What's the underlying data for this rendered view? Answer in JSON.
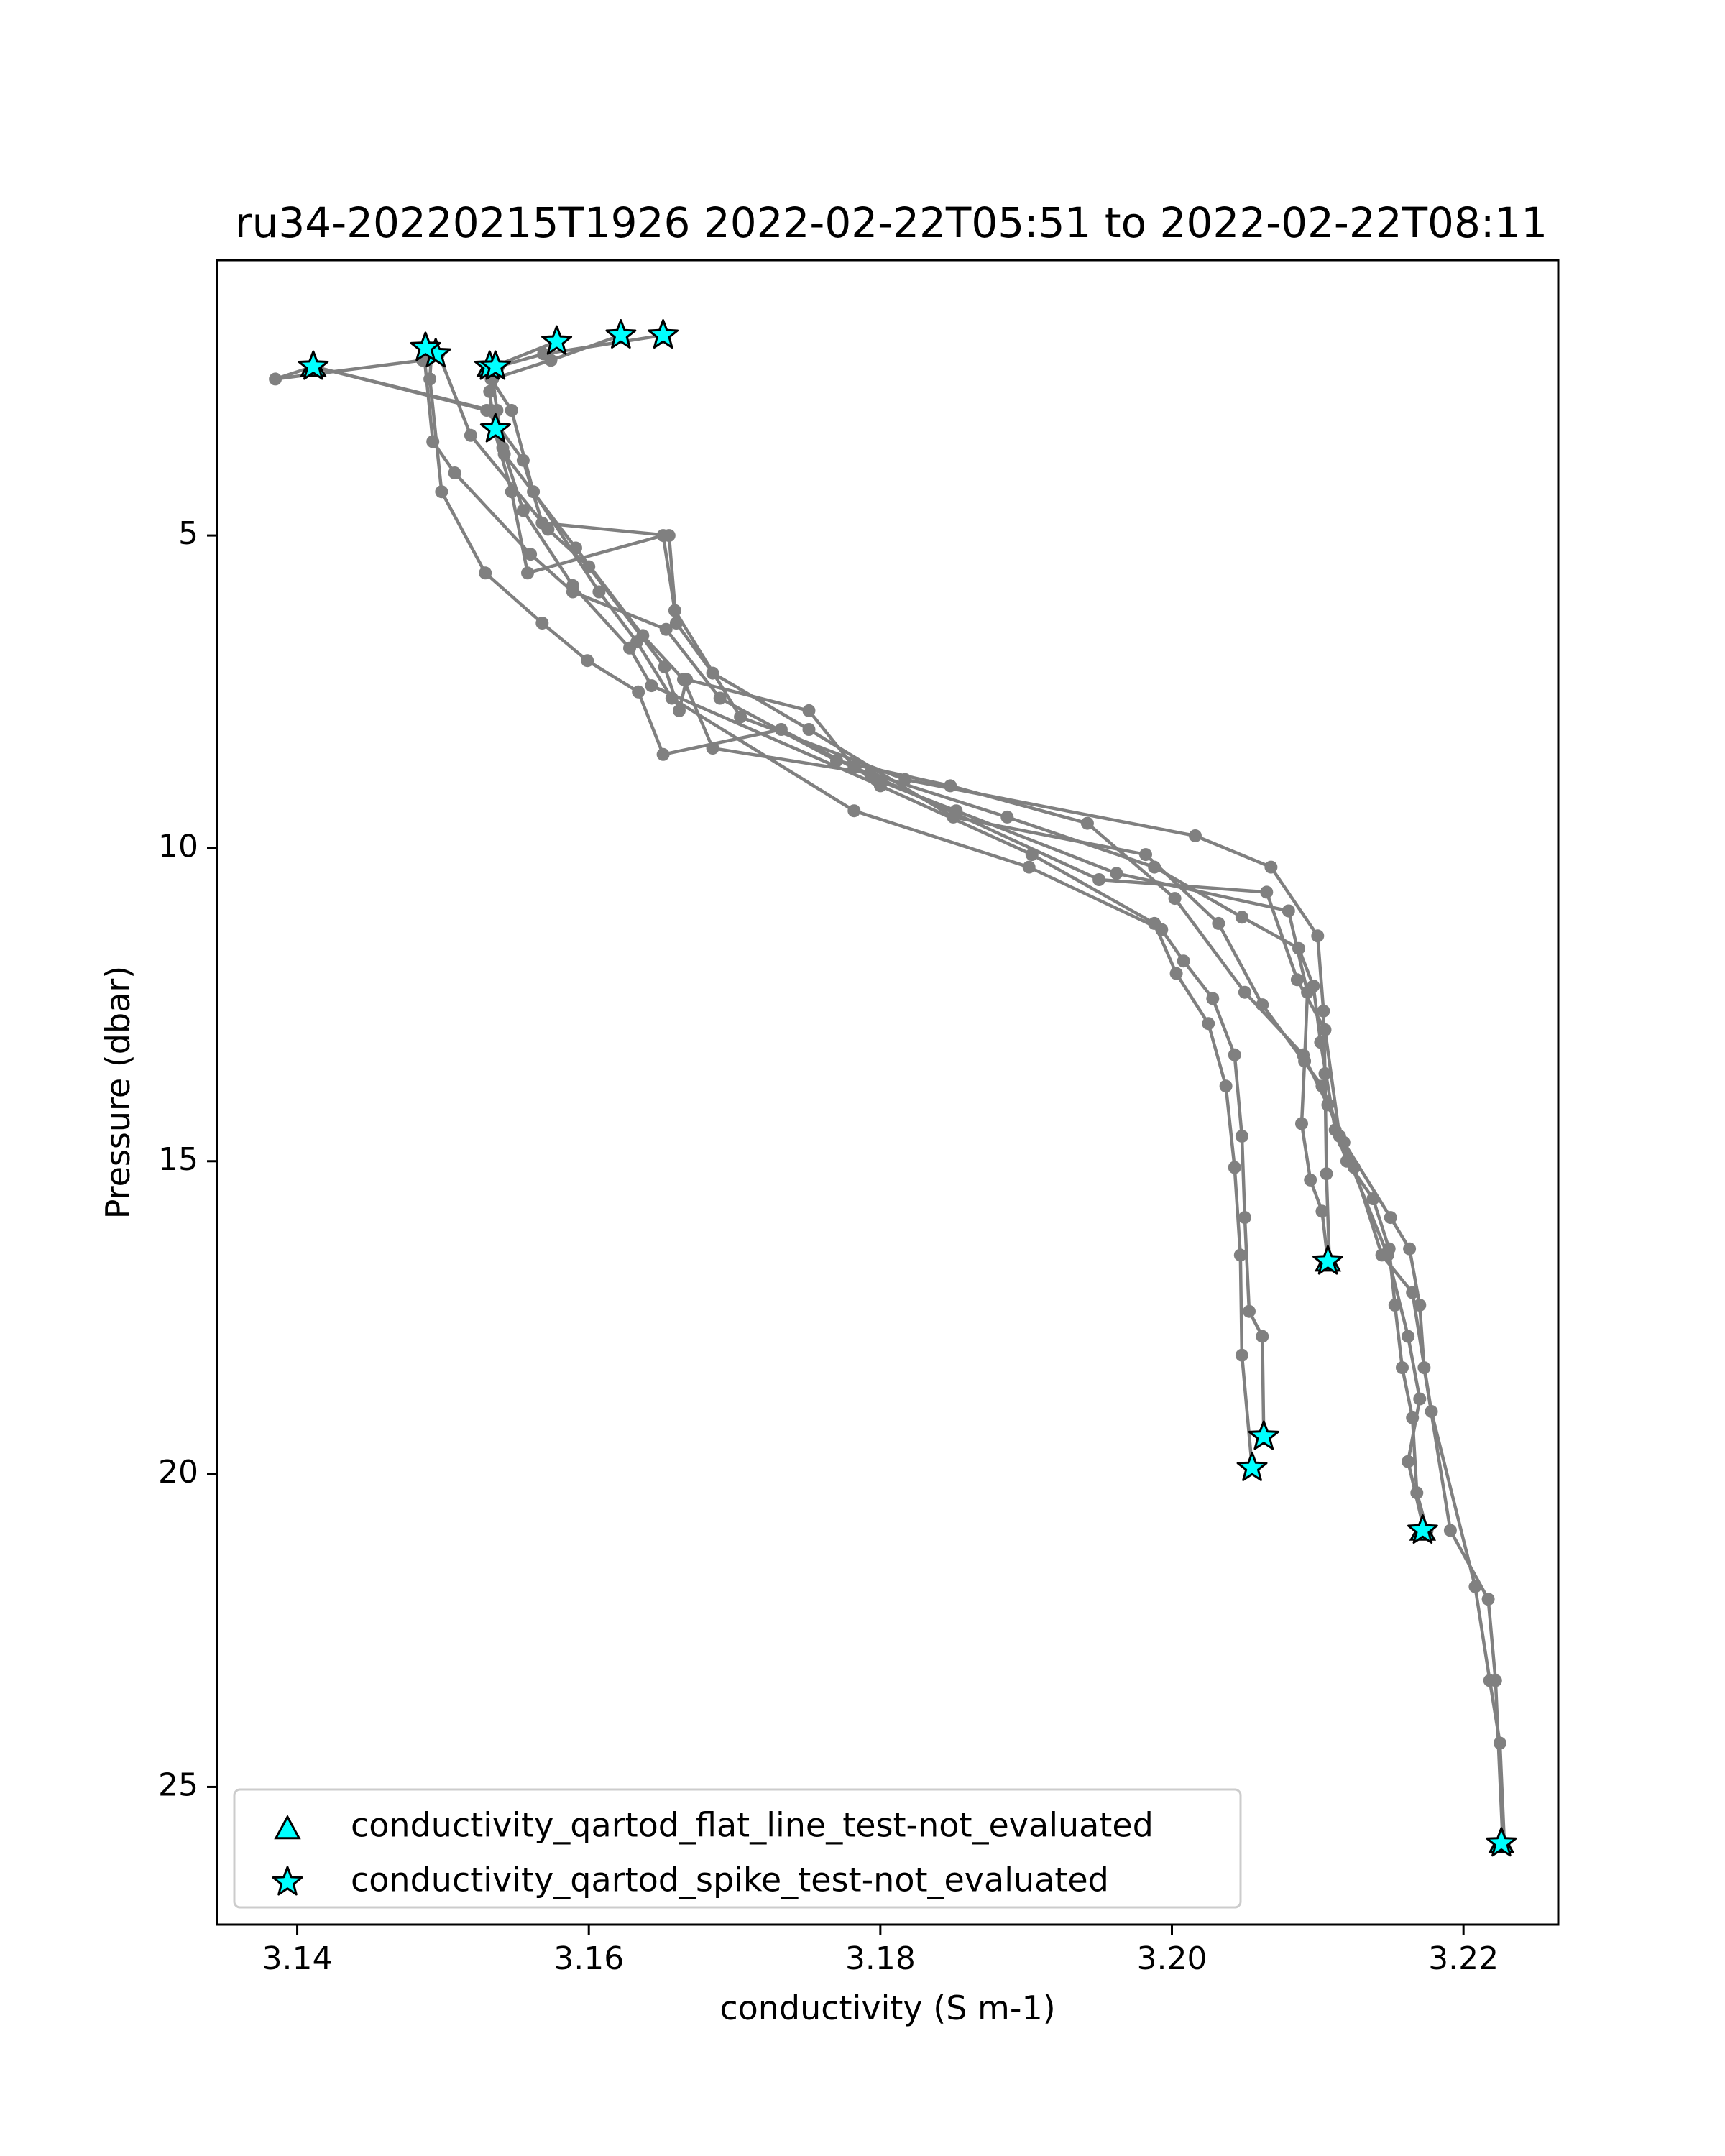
{
  "chart_data": {
    "type": "line",
    "title": "ru34-20220215T1926 2022-02-22T05:51 to 2022-02-22T08:11",
    "xlabel": "conductivity (S m-1)",
    "ylabel": "Pressure (dbar)",
    "xlim": [
      3.1345,
      3.2265
    ],
    "ylim": [
      27.2,
      0.6
    ],
    "y_inverted": true,
    "xticks": [
      3.14,
      3.16,
      3.18,
      3.2,
      3.22
    ],
    "xtick_labels": [
      "3.14",
      "3.16",
      "3.18",
      "3.20",
      "3.22"
    ],
    "yticks": [
      5,
      10,
      15,
      20,
      25
    ],
    "ytick_labels": [
      "5",
      "10",
      "15",
      "20",
      "25"
    ],
    "grid": false,
    "legend_position": "lower-left",
    "colors": {
      "line": "#808080",
      "flag_fill": "#00ffff",
      "flag_edge": "#000000"
    },
    "series": [
      {
        "x": [
          3.1651,
          3.1569,
          3.1538,
          3.1533,
          3.1547,
          3.1562,
          3.1607,
          3.1633,
          3.1657,
          3.1782,
          3.1902,
          3.1993,
          3.2008,
          3.2028,
          3.2043,
          3.2048,
          3.205,
          3.2053,
          3.2062,
          3.2063
        ],
        "y": [
          1.8,
          2.1,
          2.3,
          2.5,
          3.0,
          4.3,
          5.9,
          6.7,
          7.6,
          9.4,
          10.3,
          11.3,
          11.8,
          12.4,
          13.3,
          14.6,
          15.9,
          17.4,
          17.8,
          19.4
        ]
      },
      {
        "x": [
          3.1622,
          3.1574,
          3.1534,
          3.1537,
          3.1541,
          3.1555,
          3.1589,
          3.1628,
          3.1643,
          3.18,
          3.1904,
          3.1988,
          3.2003,
          3.2025,
          3.2037,
          3.2043,
          3.2047,
          3.2048,
          3.2055
        ],
        "y": [
          1.8,
          2.2,
          2.5,
          3.0,
          3.6,
          4.6,
          5.8,
          6.8,
          7.4,
          9.0,
          10.1,
          11.2,
          12.0,
          12.8,
          13.8,
          15.1,
          16.5,
          18.1,
          19.9
        ]
      },
      {
        "x": [
          3.1578,
          3.1535,
          3.1532,
          3.1535,
          3.1547,
          3.1558,
          3.1651,
          3.1659,
          3.1704,
          3.1817,
          3.2016,
          3.2068,
          3.21,
          3.2104,
          3.2105,
          3.2106,
          3.2108
        ],
        "y": [
          1.9,
          2.3,
          2.7,
          3.3,
          4.3,
          5.6,
          5.0,
          6.2,
          7.9,
          8.9,
          9.8,
          10.3,
          11.4,
          12.6,
          13.6,
          15.2,
          16.6
        ]
      },
      {
        "x": [
          3.1492,
          3.1491,
          3.1499,
          3.1529,
          3.1568,
          3.1599,
          3.1634,
          3.1651,
          3.1732,
          3.1797,
          3.1852,
          3.1962,
          3.208,
          3.2093,
          3.2091,
          3.2089,
          3.2095,
          3.2103,
          3.2107
        ],
        "y": [
          2.1,
          2.5,
          4.3,
          5.6,
          6.4,
          7.0,
          7.5,
          8.5,
          8.1,
          8.9,
          9.4,
          10.4,
          11.0,
          12.3,
          13.4,
          14.4,
          15.3,
          15.8,
          16.6
        ]
      },
      {
        "x": [
          3.1411,
          3.1385,
          3.1486,
          3.1497,
          3.1519,
          3.1572,
          3.16,
          3.1652,
          3.1662,
          3.1667,
          3.1751,
          3.1782,
          3.195,
          3.2065,
          3.2086,
          3.2105,
          3.2115,
          3.2148,
          3.2162,
          3.217,
          3.2162,
          3.2173
        ],
        "y": [
          2.3,
          2.5,
          2.2,
          2.1,
          3.4,
          4.9,
          5.5,
          7.1,
          7.8,
          7.3,
          7.8,
          8.7,
          10.5,
          10.7,
          12.1,
          12.9,
          14.6,
          16.5,
          17.8,
          18.8,
          19.8,
          20.9
        ]
      },
      {
        "x": [
          3.1411,
          3.1533,
          3.1542,
          3.1591,
          3.1637,
          3.1665,
          3.1685,
          3.1793,
          3.1887,
          3.1988,
          3.2048,
          3.2087,
          3.2097,
          3.2102,
          3.2112,
          3.212,
          3.2138,
          3.2149,
          3.2153,
          3.2158,
          3.2165,
          3.2168,
          3.2175
        ],
        "y": [
          2.3,
          3.0,
          3.7,
          5.2,
          6.6,
          7.3,
          8.4,
          8.8,
          9.5,
          10.3,
          11.1,
          11.6,
          12.2,
          13.1,
          14.5,
          15.0,
          15.6,
          16.4,
          17.3,
          18.3,
          19.1,
          20.3,
          20.9
        ]
      },
      {
        "x": [
          3.1487,
          3.1493,
          3.1508,
          3.156,
          3.1589,
          3.1653,
          3.169,
          3.177,
          3.1848,
          3.1942,
          3.2002,
          3.205,
          3.209,
          3.2107,
          3.2125,
          3.2144,
          3.2165,
          3.2178,
          3.2208,
          3.2218,
          3.2225,
          3.2228
        ],
        "y": [
          2.1,
          3.5,
          4.0,
          5.3,
          5.9,
          6.5,
          7.6,
          8.6,
          9.0,
          9.6,
          10.8,
          12.3,
          13.3,
          14.1,
          15.1,
          16.5,
          17.1,
          19.0,
          21.8,
          23.3,
          24.3,
          25.9
        ]
      },
      {
        "x": [
          3.1411,
          3.153,
          3.1555,
          3.1568,
          3.1655,
          3.166,
          3.1685,
          3.1751,
          3.185,
          3.1982,
          3.2032,
          3.2062,
          3.2103,
          3.2118,
          3.215,
          3.2163,
          3.217,
          3.2173,
          3.2191,
          3.2217,
          3.2222,
          3.2227
        ],
        "y": [
          2.3,
          3.0,
          3.8,
          4.8,
          5.0,
          6.4,
          7.2,
          8.1,
          9.5,
          10.1,
          11.2,
          12.5,
          13.8,
          14.7,
          15.9,
          16.4,
          17.3,
          18.3,
          20.9,
          22.0,
          23.3,
          25.9
        ]
      }
    ],
    "flags": {
      "spike": {
        "x": [
          3.1651,
          3.1622,
          3.1578,
          3.1495,
          3.1488,
          3.1411,
          3.1532,
          3.1536,
          3.1536,
          3.2063,
          3.2055,
          3.2107,
          3.2172,
          3.2226
        ],
        "y": [
          1.8,
          1.8,
          1.9,
          2.1,
          2.0,
          2.3,
          2.3,
          2.3,
          3.3,
          19.4,
          19.9,
          16.6,
          20.9,
          25.9
        ]
      },
      "flat_line": {
        "x": [
          3.1411,
          3.1532,
          3.2107,
          3.2172,
          3.2226
        ],
        "y": [
          2.3,
          2.3,
          16.6,
          20.9,
          25.9
        ]
      }
    },
    "legend": [
      {
        "label": "conductivity_qartod_flat_line_test-not_evaluated",
        "marker": "triangle"
      },
      {
        "label": "conductivity_qartod_spike_test-not_evaluated",
        "marker": "star"
      }
    ]
  }
}
